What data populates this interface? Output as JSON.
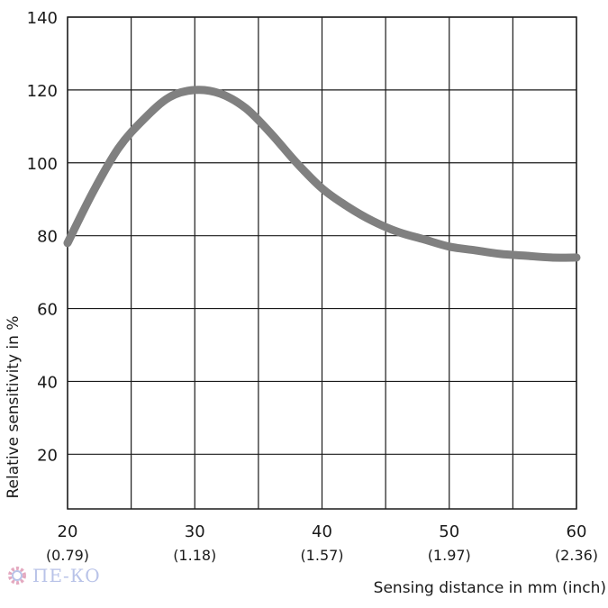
{
  "chart_data": {
    "type": "line",
    "title": "",
    "xlabel": "Sensing distance in mm (inch)",
    "ylabel": "Relative sensitivity in %",
    "xlim": [
      20,
      60
    ],
    "ylim": [
      5,
      140
    ],
    "grid": true,
    "x_ticks": [
      {
        "value": 20,
        "label": "20",
        "sub": "(0.79)"
      },
      {
        "value": 30,
        "label": "30",
        "sub": "(1.18)"
      },
      {
        "value": 40,
        "label": "40",
        "sub": "(1.57)"
      },
      {
        "value": 50,
        "label": "50",
        "sub": "(1.97)"
      },
      {
        "value": 60,
        "label": "60",
        "sub": "(2.36)"
      }
    ],
    "x_gridlines": [
      20,
      25,
      30,
      35,
      40,
      45,
      50,
      55,
      60
    ],
    "y_ticks": [
      {
        "value": 20,
        "label": "20"
      },
      {
        "value": 40,
        "label": "40"
      },
      {
        "value": 60,
        "label": "60"
      },
      {
        "value": 80,
        "label": "80"
      },
      {
        "value": 100,
        "label": "100"
      },
      {
        "value": 120,
        "label": "120"
      },
      {
        "value": 140,
        "label": "140"
      }
    ],
    "series": [
      {
        "color": "#808080",
        "x": [
          20,
          22,
          24,
          26,
          28,
          30,
          32,
          34,
          36,
          38,
          40,
          42,
          44,
          46,
          48,
          50,
          52,
          54,
          56,
          58,
          60
        ],
        "y": [
          78,
          92,
          104,
          112,
          118,
          120,
          119,
          115,
          108,
          100,
          93,
          88,
          84,
          81,
          79,
          77,
          76,
          75,
          74.5,
          74,
          74
        ]
      }
    ]
  },
  "watermark": {
    "text": "ПЕ-КО"
  }
}
